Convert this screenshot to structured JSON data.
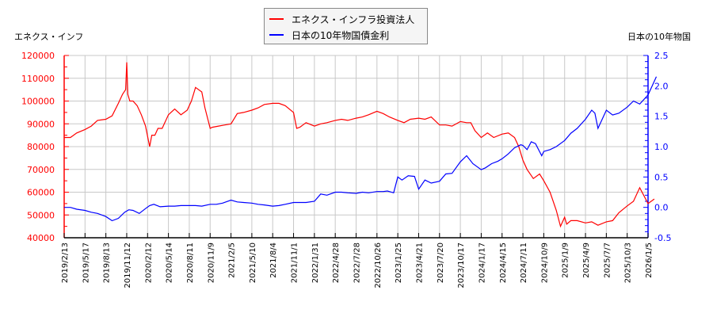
{
  "legend": {
    "series1_label": "エネクス・インフラ投資法人",
    "series2_label": "日本の10年物国債金利"
  },
  "axes": {
    "left_title": "エネクス・インフ",
    "right_title": "日本の10年物国"
  },
  "colors": {
    "series1": "#ff0000",
    "series2": "#0000ff",
    "grid": "#c8c8c8"
  },
  "chart_data": {
    "type": "line",
    "title": "",
    "legend_position": "top-center",
    "grid": true,
    "x_tick_labels": [
      "2019/2/13",
      "2019/5/17",
      "2019/8/13",
      "2019/11/12",
      "2020/2/12",
      "2020/5/14",
      "2020/8/11",
      "2020/11/9",
      "2021/2/5",
      "2021/5/10",
      "2021/8/4",
      "2021/11/1",
      "2022/1/31",
      "2022/4/28",
      "2022/7/28",
      "2022/10/26",
      "2023/1/25",
      "2023/4/21",
      "2023/7/20",
      "2023/10/17",
      "2024/1/17",
      "2024/4/15",
      "2024/7/11",
      "2024/10/9",
      "2025/1/9",
      "2025/4/9",
      "2025/7/7",
      "2025/10/3",
      "2026/1/5"
    ],
    "y_left": {
      "label": "エネクス・インフ",
      "ylim": [
        40000,
        120000
      ],
      "ticks": [
        40000,
        50000,
        60000,
        70000,
        80000,
        90000,
        100000,
        110000,
        120000
      ]
    },
    "y_right": {
      "label": "日本の10年物国",
      "ylim": [
        -0.5,
        2.5
      ],
      "ticks": [
        "-0.5",
        "0.0",
        "0.5",
        "1.0",
        "1.5",
        "2.0",
        "2.5"
      ]
    },
    "series": [
      {
        "name": "エネクス・インフラ投資法人",
        "axis": "left",
        "points_x_index": [
          0,
          0.3,
          0.6,
          1,
          1.3,
          1.6,
          2,
          2.3,
          2.6,
          2.8,
          2.95,
          3.0,
          3.05,
          3.15,
          3.3,
          3.5,
          3.7,
          3.9,
          4.1,
          4.2,
          4.35,
          4.5,
          4.7,
          5,
          5.3,
          5.6,
          5.9,
          6.1,
          6.3,
          6.6,
          6.75,
          7.0,
          7.1,
          7.4,
          7.7,
          8,
          8.3,
          8.6,
          9,
          9.3,
          9.6,
          10,
          10.3,
          10.6,
          11,
          11.15,
          11.3,
          11.6,
          12,
          12.3,
          12.6,
          13,
          13.3,
          13.6,
          14,
          14.3,
          14.6,
          15,
          15.3,
          15.6,
          16,
          16.3,
          16.6,
          17,
          17.3,
          17.6,
          18,
          18.3,
          18.6,
          19,
          19.3,
          19.5,
          19.7,
          20,
          20.3,
          20.6,
          21,
          21.3,
          21.6,
          21.8,
          22,
          22.2,
          22.5,
          22.8,
          23,
          23.3,
          23.6,
          23.8,
          24,
          24.1,
          24.3,
          24.6,
          25,
          25.3,
          25.6,
          26,
          26.3,
          26.6,
          27,
          27.3,
          27.6,
          28,
          28.3
        ],
        "values": [
          84000,
          84000,
          86000,
          87500,
          89000,
          91500,
          92000,
          93500,
          99000,
          103000,
          105000,
          117000,
          103000,
          100000,
          100000,
          98000,
          94000,
          89000,
          80000,
          85000,
          85000,
          88000,
          88000,
          94000,
          96500,
          94000,
          96000,
          100000,
          106000,
          104000,
          97000,
          88000,
          88500,
          89000,
          89500,
          90000,
          94500,
          95000,
          96000,
          97000,
          98500,
          99000,
          99000,
          98000,
          95000,
          88000,
          88500,
          90500,
          89000,
          90000,
          90500,
          91500,
          92000,
          91500,
          92500,
          93000,
          94000,
          95500,
          94500,
          93000,
          91500,
          90500,
          92000,
          92500,
          92000,
          93000,
          89500,
          89500,
          89000,
          91000,
          90500,
          90500,
          87000,
          84000,
          86000,
          84000,
          85500,
          86000,
          84000,
          80000,
          74000,
          70000,
          66000,
          68000,
          65000,
          60000,
          52000,
          45000,
          49000,
          46000,
          47500,
          47500,
          46500,
          47000,
          45500,
          47000,
          47500,
          51000,
          54000,
          56000,
          62000,
          55000,
          57000
        ]
      },
      {
        "name": "日本の10年物国債金利",
        "axis": "right",
        "points_x_index": [
          0,
          0.3,
          0.6,
          1,
          1.3,
          1.6,
          2,
          2.3,
          2.6,
          2.9,
          3.1,
          3.3,
          3.6,
          3.9,
          4.1,
          4.3,
          4.6,
          5,
          5.3,
          5.6,
          6,
          6.3,
          6.6,
          7,
          7.3,
          7.6,
          8,
          8.3,
          8.6,
          9,
          9.3,
          9.6,
          10,
          10.3,
          10.6,
          11,
          11.3,
          11.6,
          12,
          12.3,
          12.6,
          13,
          13.3,
          13.6,
          14,
          14.3,
          14.6,
          15,
          15.3,
          15.5,
          15.8,
          16,
          16.2,
          16.5,
          16.8,
          17,
          17.3,
          17.6,
          18,
          18.3,
          18.6,
          19,
          19.3,
          19.6,
          20,
          20.2,
          20.5,
          20.8,
          21,
          21.3,
          21.6,
          21.9,
          22,
          22.2,
          22.4,
          22.6,
          22.9,
          23,
          23.3,
          23.6,
          24,
          24.3,
          24.6,
          25,
          25.3,
          25.45,
          25.6,
          25.8,
          26,
          26.3,
          26.6,
          27,
          27.3,
          27.6,
          28,
          28.2,
          28.4
        ],
        "values": [
          0.0,
          0.0,
          -0.03,
          -0.05,
          -0.08,
          -0.1,
          -0.15,
          -0.22,
          -0.18,
          -0.08,
          -0.04,
          -0.05,
          -0.1,
          -0.02,
          0.03,
          0.05,
          0.01,
          0.02,
          0.02,
          0.03,
          0.03,
          0.03,
          0.02,
          0.05,
          0.05,
          0.07,
          0.12,
          0.09,
          0.08,
          0.07,
          0.05,
          0.04,
          0.02,
          0.03,
          0.05,
          0.08,
          0.08,
          0.08,
          0.1,
          0.22,
          0.2,
          0.25,
          0.25,
          0.24,
          0.23,
          0.25,
          0.24,
          0.26,
          0.26,
          0.27,
          0.24,
          0.5,
          0.45,
          0.52,
          0.51,
          0.3,
          0.45,
          0.4,
          0.43,
          0.55,
          0.56,
          0.75,
          0.85,
          0.72,
          0.62,
          0.65,
          0.72,
          0.76,
          0.8,
          0.88,
          0.98,
          1.03,
          1.02,
          0.95,
          1.08,
          1.05,
          0.85,
          0.92,
          0.95,
          1.0,
          1.1,
          1.22,
          1.3,
          1.45,
          1.6,
          1.55,
          1.3,
          1.45,
          1.6,
          1.52,
          1.55,
          1.65,
          1.75,
          1.7,
          1.85,
          2.0,
          2.15,
          2.3
        ]
      }
    ]
  }
}
